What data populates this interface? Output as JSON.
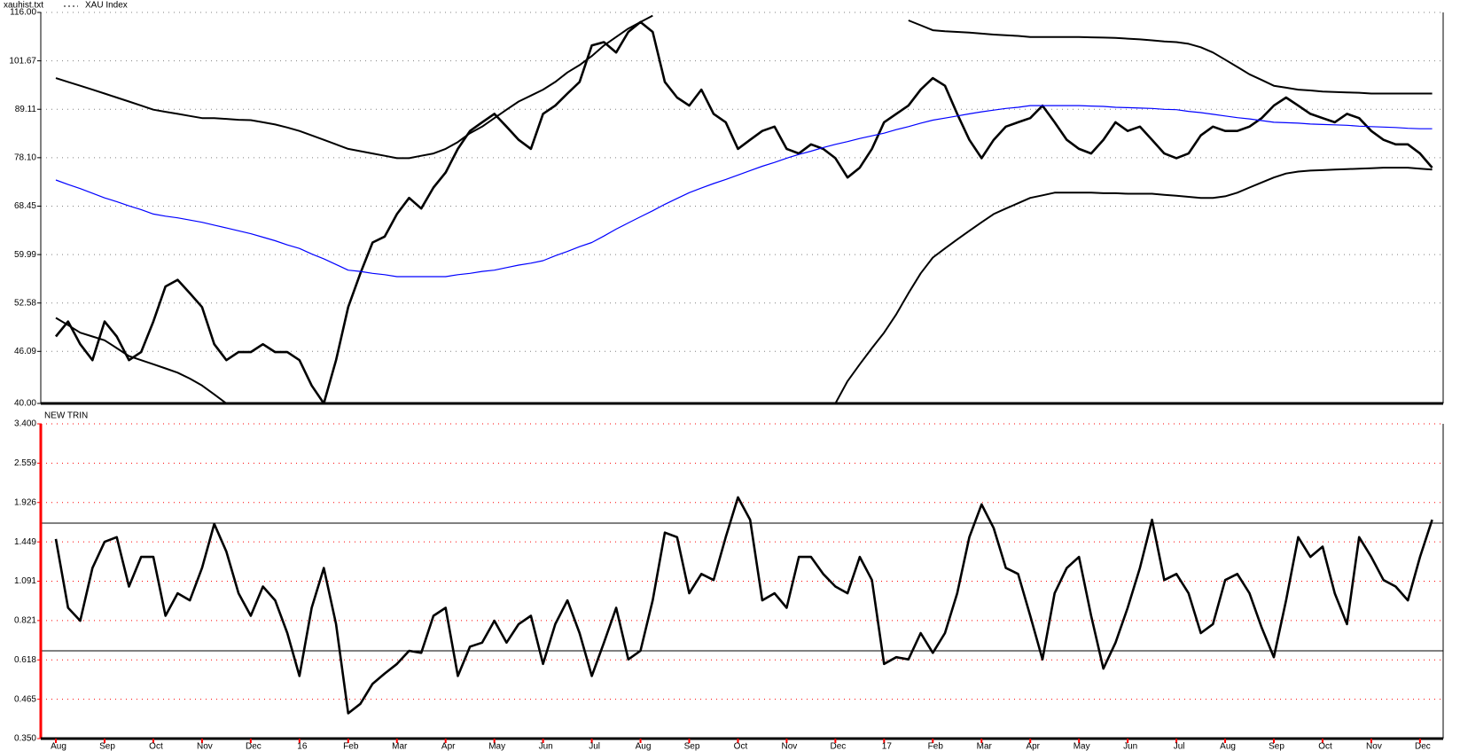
{
  "chart_data": [
    {
      "type": "line",
      "title": "xauhist.txt",
      "log": true,
      "grid": true,
      "grid_color": "#808080",
      "axis_color": "#000000",
      "ylim": [
        40,
        116
      ],
      "yticks": [
        {
          "value": 40,
          "label": "40.00"
        },
        46.09,
        52.58,
        59.99,
        68.45,
        {
          "value": 78.1,
          "label": "78.10"
        },
        89.11,
        101.67,
        {
          "value": 116,
          "label": "116.00"
        }
      ],
      "series": [
        {
          "name": "XAU Index",
          "color": "#000000",
          "values": [
            48,
            50,
            47,
            45,
            50,
            48,
            45,
            46,
            50,
            55,
            56,
            54,
            52,
            47,
            45,
            46,
            46,
            47,
            46,
            46,
            45,
            42,
            40,
            45,
            52,
            57,
            62,
            63,
            67,
            70,
            68,
            72,
            75,
            80,
            84,
            86,
            88,
            85,
            82,
            80,
            88,
            90,
            93,
            96,
            106,
            107,
            104,
            110,
            113,
            110,
            96,
            92,
            90,
            94,
            88,
            86,
            80,
            82,
            84,
            85,
            80,
            79,
            81,
            80,
            78,
            74,
            76,
            80,
            86,
            88,
            90,
            94,
            97,
            95,
            88,
            82,
            78,
            82,
            85,
            86,
            87,
            90,
            86,
            82,
            80,
            79,
            82,
            86,
            84,
            85,
            82,
            79,
            78,
            79,
            83,
            85,
            84,
            84,
            85,
            87,
            90,
            92,
            90,
            88,
            87,
            86,
            88,
            87,
            84,
            82,
            81,
            81,
            79,
            76
          ]
        },
        {
          "color": "#000000",
          "values": [
            97,
            96,
            95,
            94,
            93,
            92,
            91,
            90,
            89,
            88.5,
            88,
            87.5,
            87,
            87,
            86.8,
            86.6,
            86.5,
            86,
            85.5,
            84.8,
            84,
            83,
            82,
            81,
            80,
            79.5,
            79,
            78.5,
            78,
            78,
            78.5,
            79,
            80,
            81.5,
            83.5,
            85,
            87,
            89,
            91,
            92.5,
            94,
            96,
            98.5,
            100.5,
            103,
            106,
            108.5,
            111,
            113,
            115,
            null,
            null,
            null,
            null,
            null,
            null,
            null,
            null,
            null,
            null,
            null,
            null,
            null,
            null,
            null,
            null,
            null,
            null,
            null,
            null,
            113.5,
            112,
            110.5,
            110.2,
            110,
            109.8,
            109.5,
            109.2,
            109,
            108.8,
            108.5,
            108.5,
            108.5,
            108.5,
            108.5,
            108.4,
            108.3,
            108.2,
            108,
            107.8,
            107.5,
            107.2,
            107,
            106.5,
            105.5,
            104,
            102,
            100,
            98,
            96.5,
            95,
            94.5,
            94,
            93.8,
            93.5,
            93.4,
            93.3,
            93.2,
            93,
            93,
            93,
            93,
            93,
            93
          ]
        },
        {
          "color": "#0000ff",
          "values": [
            73.5,
            72.6,
            71.8,
            70.9,
            70,
            69.3,
            68.5,
            67.8,
            67,
            66.6,
            66.3,
            65.9,
            65.5,
            65,
            64.5,
            64,
            63.5,
            62.9,
            62.3,
            61.6,
            61,
            60.1,
            59.3,
            58.4,
            57.5,
            57.3,
            57,
            56.8,
            56.5,
            56.5,
            56.5,
            56.5,
            56.5,
            56.8,
            57,
            57.3,
            57.5,
            57.9,
            58.3,
            58.6,
            59,
            59.8,
            60.5,
            61.3,
            62,
            63.1,
            64.3,
            65.4,
            66.5,
            67.6,
            68.8,
            69.9,
            71,
            71.9,
            72.8,
            73.6,
            74.5,
            75.4,
            76.3,
            77.1,
            78,
            78.8,
            79.5,
            80.3,
            81,
            81.6,
            82.3,
            82.9,
            83.5,
            84.3,
            85,
            85.8,
            86.5,
            87,
            87.5,
            88,
            88.5,
            88.9,
            89.3,
            89.6,
            90,
            90,
            90,
            90,
            90,
            89.9,
            89.8,
            89.6,
            89.5,
            89.4,
            89.3,
            89.1,
            89,
            88.6,
            88.3,
            87.9,
            87.5,
            87.1,
            86.8,
            86.4,
            86,
            85.9,
            85.8,
            85.6,
            85.5,
            85.4,
            85.3,
            85.1,
            85,
            84.9,
            84.8,
            84.6,
            84.5,
            84.5
          ]
        },
        {
          "color": "#000000",
          "values": [
            50.5,
            49.5,
            48.5,
            48,
            47.5,
            46.5,
            45.5,
            45,
            44.5,
            44,
            43.5,
            42.8,
            42,
            41,
            40,
            null,
            null,
            null,
            null,
            null,
            null,
            null,
            null,
            null,
            null,
            null,
            null,
            null,
            null,
            null,
            null,
            null,
            null,
            null,
            null,
            null,
            null,
            null,
            null,
            null,
            null,
            null,
            null,
            null,
            null,
            null,
            null,
            null,
            null,
            null,
            null,
            null,
            null,
            null,
            null,
            null,
            null,
            null,
            null,
            null,
            null,
            null,
            null,
            null,
            40,
            42.5,
            44.5,
            46.5,
            48.5,
            51,
            54,
            57,
            59.5,
            61,
            62.5,
            64,
            65.5,
            67,
            68,
            69,
            70,
            70.5,
            71,
            71,
            71,
            71,
            70.9,
            70.9,
            70.8,
            70.8,
            70.8,
            70.6,
            70.4,
            70.2,
            70,
            70,
            70.3,
            71,
            72,
            73,
            74,
            74.8,
            75.2,
            75.4,
            75.5,
            75.6,
            75.7,
            75.8,
            75.9,
            76,
            76,
            76,
            75.8,
            75.6
          ]
        }
      ]
    },
    {
      "type": "line",
      "log": true,
      "grid": true,
      "grid_color": "#ff0000",
      "axis_color": "#ff0000",
      "ylim": [
        0.35,
        3.4
      ],
      "yticks": [
        {
          "value": 0.35,
          "label": "0.350"
        },
        0.465,
        0.618,
        0.821,
        1.091,
        1.449,
        1.926,
        2.559,
        {
          "value": 3.4,
          "label": "3.400"
        }
      ],
      "hlines": [
        1.66,
        0.66
      ],
      "categories": [
        "Aug",
        null,
        null,
        null,
        "Sep",
        null,
        null,
        null,
        "Oct",
        null,
        null,
        null,
        "Nov",
        null,
        null,
        null,
        "Dec",
        null,
        null,
        null,
        "16",
        null,
        null,
        null,
        "Feb",
        null,
        null,
        null,
        "Mar",
        null,
        null,
        null,
        "Apr",
        null,
        null,
        null,
        "May",
        null,
        null,
        null,
        "Jun",
        null,
        null,
        null,
        "Jul",
        null,
        null,
        null,
        "Aug",
        null,
        null,
        null,
        "Sep",
        null,
        null,
        null,
        "Oct",
        null,
        null,
        null,
        "Nov",
        null,
        null,
        null,
        "Dec",
        null,
        null,
        null,
        "17",
        null,
        null,
        null,
        "Feb",
        null,
        null,
        null,
        "Mar",
        null,
        null,
        null,
        "Apr",
        null,
        null,
        null,
        "May",
        null,
        null,
        null,
        "Jun",
        null,
        null,
        null,
        "Jul",
        null,
        null,
        null,
        "Aug",
        null,
        null,
        null,
        "Sep",
        null,
        null,
        null,
        "Oct",
        null,
        null,
        null,
        "Nov",
        null,
        null,
        null,
        "Dec",
        null
      ],
      "series": [
        {
          "name": "NEW TRIN",
          "color": "#000000",
          "values": [
            1.48,
            0.9,
            0.82,
            1.2,
            1.45,
            1.5,
            1.05,
            1.3,
            1.3,
            0.85,
            1.0,
            0.95,
            1.2,
            1.65,
            1.35,
            1.0,
            0.85,
            1.05,
            0.95,
            0.75,
            0.55,
            0.9,
            1.2,
            0.8,
            0.42,
            0.45,
            0.52,
            0.56,
            0.6,
            0.66,
            0.65,
            0.85,
            0.9,
            0.55,
            0.68,
            0.7,
            0.82,
            0.7,
            0.8,
            0.85,
            0.6,
            0.8,
            0.95,
            0.75,
            0.55,
            0.7,
            0.9,
            0.62,
            0.66,
            0.95,
            1.55,
            1.5,
            1.0,
            1.15,
            1.1,
            1.5,
            2.0,
            1.7,
            0.95,
            1.0,
            0.9,
            1.3,
            1.3,
            1.15,
            1.05,
            1.0,
            1.3,
            1.1,
            0.6,
            0.63,
            0.62,
            0.75,
            0.65,
            0.75,
            1.0,
            1.5,
            1.9,
            1.6,
            1.2,
            1.15,
            0.85,
            0.62,
            1.0,
            1.2,
            1.3,
            0.85,
            0.58,
            0.7,
            0.9,
            1.2,
            1.7,
            1.1,
            1.15,
            1.0,
            0.75,
            0.8,
            1.1,
            1.15,
            1.0,
            0.78,
            0.63,
            0.95,
            1.5,
            1.3,
            1.4,
            1.0,
            0.8,
            1.5,
            1.3,
            1.1,
            1.05,
            0.95,
            1.3,
            1.7
          ]
        }
      ]
    }
  ]
}
